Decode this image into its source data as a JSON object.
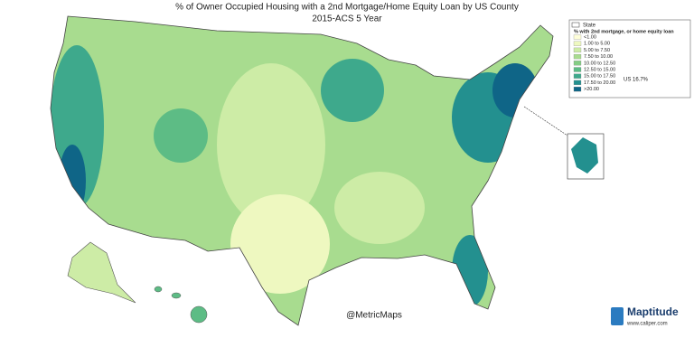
{
  "header": {
    "title": "% of Owner Occupied Housing with a 2nd Mortgage/Home Equity Loan by US County",
    "subtitle": "2015-ACS 5 Year"
  },
  "legend": {
    "title": "State",
    "subtitle": "% with 2nd mortgage, or home equity loan",
    "items": [
      {
        "label": "<1.00",
        "color": "#ffffd9"
      },
      {
        "label": "1.00 to 5.00",
        "color": "#eef8c0"
      },
      {
        "label": "5.00 to 7.50",
        "color": "#cdeca6"
      },
      {
        "label": "7.50 to 10.00",
        "color": "#a8dc8f"
      },
      {
        "label": "10.00 to 12.50",
        "color": "#84cd84"
      },
      {
        "label": "12.50 to 15.00",
        "color": "#5dbc85"
      },
      {
        "label": "15.00 to 17.50",
        "color": "#3ea98c"
      },
      {
        "label": "17.50 to 20.00",
        "color": "#23908f"
      },
      {
        "label": ">20.00",
        "color": "#0f6587"
      }
    ],
    "note": "US 16.7%"
  },
  "credit": "@MetricMaps",
  "brand": {
    "name": "Maptitude",
    "url": "www.caliper.com"
  }
}
